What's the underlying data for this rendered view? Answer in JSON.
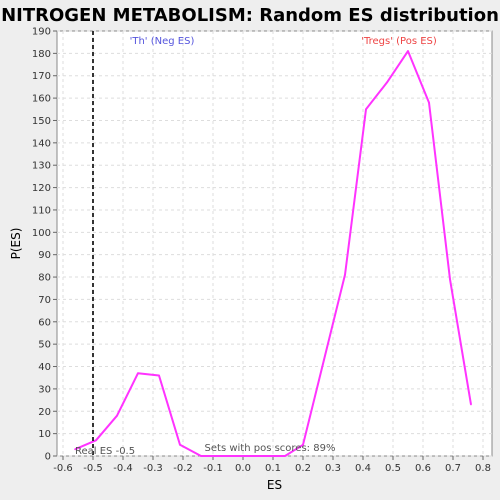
{
  "colors": {
    "background": "#eeeeee",
    "plot_background": "#ffffff",
    "series": "#ff33ff",
    "neg_label": "#5555dd",
    "pos_label": "#ee4444",
    "grid": "#dddddd",
    "real_es_line": "#333333"
  },
  "chart_data": {
    "type": "line",
    "title": "NITROGEN METABOLISM: Random ES distribution",
    "xlabel": "ES",
    "ylabel": "P(ES)",
    "xlim": [
      -0.62,
      0.83
    ],
    "ylim": [
      0,
      190
    ],
    "x_ticks": [
      -0.6,
      -0.5,
      -0.4,
      -0.3,
      -0.2,
      -0.1,
      0.0,
      0.1,
      0.2,
      0.3,
      0.4,
      0.5,
      0.6,
      0.7,
      0.8
    ],
    "x_tick_labels": [
      "-0.6",
      "-0.5",
      "-0.4",
      "-0.3",
      "-0.2",
      "-0.1",
      "0.0",
      "0.1",
      "0.2",
      "0.3",
      "0.4",
      "0.5",
      "0.6",
      "0.7",
      "0.8"
    ],
    "y_ticks": [
      0,
      10,
      20,
      30,
      40,
      50,
      60,
      70,
      80,
      90,
      100,
      110,
      120,
      130,
      140,
      150,
      160,
      170,
      180,
      190
    ],
    "grid": true,
    "series": [
      {
        "x": [
          -0.56,
          -0.49,
          -0.42,
          -0.35,
          -0.28,
          -0.21,
          -0.14,
          -0.07,
          0.0,
          0.07,
          0.14,
          0.2,
          0.27,
          0.34,
          0.41,
          0.48,
          0.55,
          0.62,
          0.69,
          0.76
        ],
        "y": [
          3,
          7,
          18,
          37,
          36,
          5,
          0,
          0,
          0,
          0,
          0,
          5,
          43,
          81,
          155,
          167,
          181,
          158,
          79,
          23
        ]
      }
    ],
    "annotations": {
      "neg_label": "'Th' (Neg ES)",
      "pos_label": "'Tregs' (Pos ES)",
      "real_es_label": "Real ES -0.5",
      "real_es": -0.5,
      "sets_label": "Sets with pos scores: 89%"
    }
  }
}
